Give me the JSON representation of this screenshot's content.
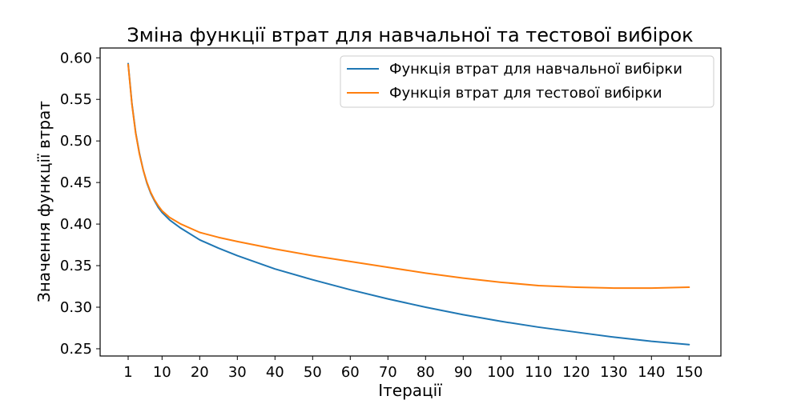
{
  "chart_data": {
    "type": "line",
    "title": "Зміна функції втрат для навчальної та тестової вибірок",
    "xlabel": "Ітерації",
    "ylabel": "Значення функції втрат",
    "xlim": [
      -6.45,
      158.45
    ],
    "ylim": [
      0.2413,
      0.6118
    ],
    "xticks": [
      1,
      10,
      20,
      30,
      40,
      50,
      60,
      70,
      80,
      90,
      100,
      110,
      120,
      130,
      140,
      150
    ],
    "yticks": [
      0.25,
      0.3,
      0.35,
      0.4,
      0.45,
      0.5,
      0.55,
      0.6
    ],
    "ytick_labels": [
      "0.25",
      "0.30",
      "0.35",
      "0.40",
      "0.45",
      "0.50",
      "0.55",
      "0.60"
    ],
    "grid": false,
    "legend_position": "top-right",
    "series": [
      {
        "name": "Функція втрат для навчальної вибірки",
        "color": "#1f77b4",
        "x": [
          1,
          2,
          3,
          4,
          5,
          6,
          7,
          8,
          9,
          10,
          12,
          15,
          20,
          25,
          30,
          40,
          50,
          60,
          70,
          80,
          90,
          100,
          110,
          120,
          130,
          140,
          150
        ],
        "values": [
          0.593,
          0.545,
          0.51,
          0.485,
          0.465,
          0.449,
          0.437,
          0.428,
          0.42,
          0.414,
          0.405,
          0.395,
          0.381,
          0.371,
          0.362,
          0.346,
          0.333,
          0.321,
          0.31,
          0.3,
          0.291,
          0.283,
          0.276,
          0.27,
          0.264,
          0.259,
          0.255
        ]
      },
      {
        "name": "Функція втрат для тестової вибірки",
        "color": "#ff7f0e",
        "x": [
          1,
          2,
          3,
          4,
          5,
          6,
          7,
          8,
          9,
          10,
          12,
          15,
          20,
          25,
          30,
          40,
          50,
          60,
          70,
          80,
          90,
          100,
          110,
          120,
          130,
          140,
          150
        ],
        "values": [
          0.592,
          0.544,
          0.509,
          0.484,
          0.465,
          0.45,
          0.438,
          0.429,
          0.422,
          0.416,
          0.408,
          0.4,
          0.39,
          0.384,
          0.379,
          0.37,
          0.362,
          0.355,
          0.348,
          0.341,
          0.335,
          0.33,
          0.326,
          0.324,
          0.323,
          0.323,
          0.324
        ]
      }
    ]
  }
}
